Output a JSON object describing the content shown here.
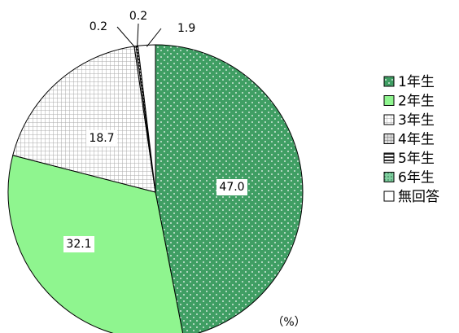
{
  "chart_data": {
    "type": "pie",
    "categories": [
      "1年生",
      "2年生",
      "3年生",
      "4年生",
      "5年生",
      "6年生",
      "無回答"
    ],
    "values": [
      47.0,
      32.1,
      18.7,
      0.2,
      0.2,
      0,
      1.9
    ],
    "value_labels": [
      "47.0",
      "32.1",
      "18.7",
      "0.2",
      "0.2",
      null,
      "1.9"
    ],
    "colors": [
      "#3f9e63",
      "#8ff58f",
      "#e6e6e6",
      "#b0b0b0",
      "#555555",
      "#7fcf9f",
      "#ffffff"
    ],
    "unit": "（%）",
    "legend": "right"
  }
}
